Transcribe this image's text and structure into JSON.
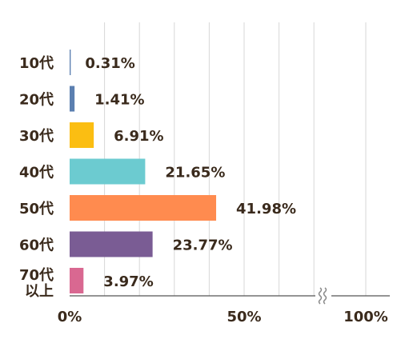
{
  "chart_data": {
    "type": "bar",
    "orientation": "horizontal",
    "categories": [
      "10代",
      "20代",
      "30代",
      "40代",
      "50代",
      "60代",
      [
        "70代",
        "以上"
      ]
    ],
    "values": [
      0.31,
      1.41,
      6.91,
      21.65,
      41.98,
      23.77,
      3.97
    ],
    "value_labels": [
      "0.31%",
      "1.41%",
      "6.91%",
      "21.65%",
      "41.98%",
      "23.77%",
      "3.97%"
    ],
    "colors": [
      "#5b7fb0",
      "#5b7fb0",
      "#fbbe12",
      "#6ccbd0",
      "#ff8b4f",
      "#7a5c94",
      "#d96891"
    ],
    "xlim": [
      0,
      100
    ],
    "x_ticks": [
      {
        "value": 0,
        "label": "0%"
      },
      {
        "value": 50,
        "label": "50%"
      },
      {
        "value": 100,
        "label": "100%"
      }
    ],
    "axis_break": true,
    "grid": true,
    "legend": "none"
  }
}
